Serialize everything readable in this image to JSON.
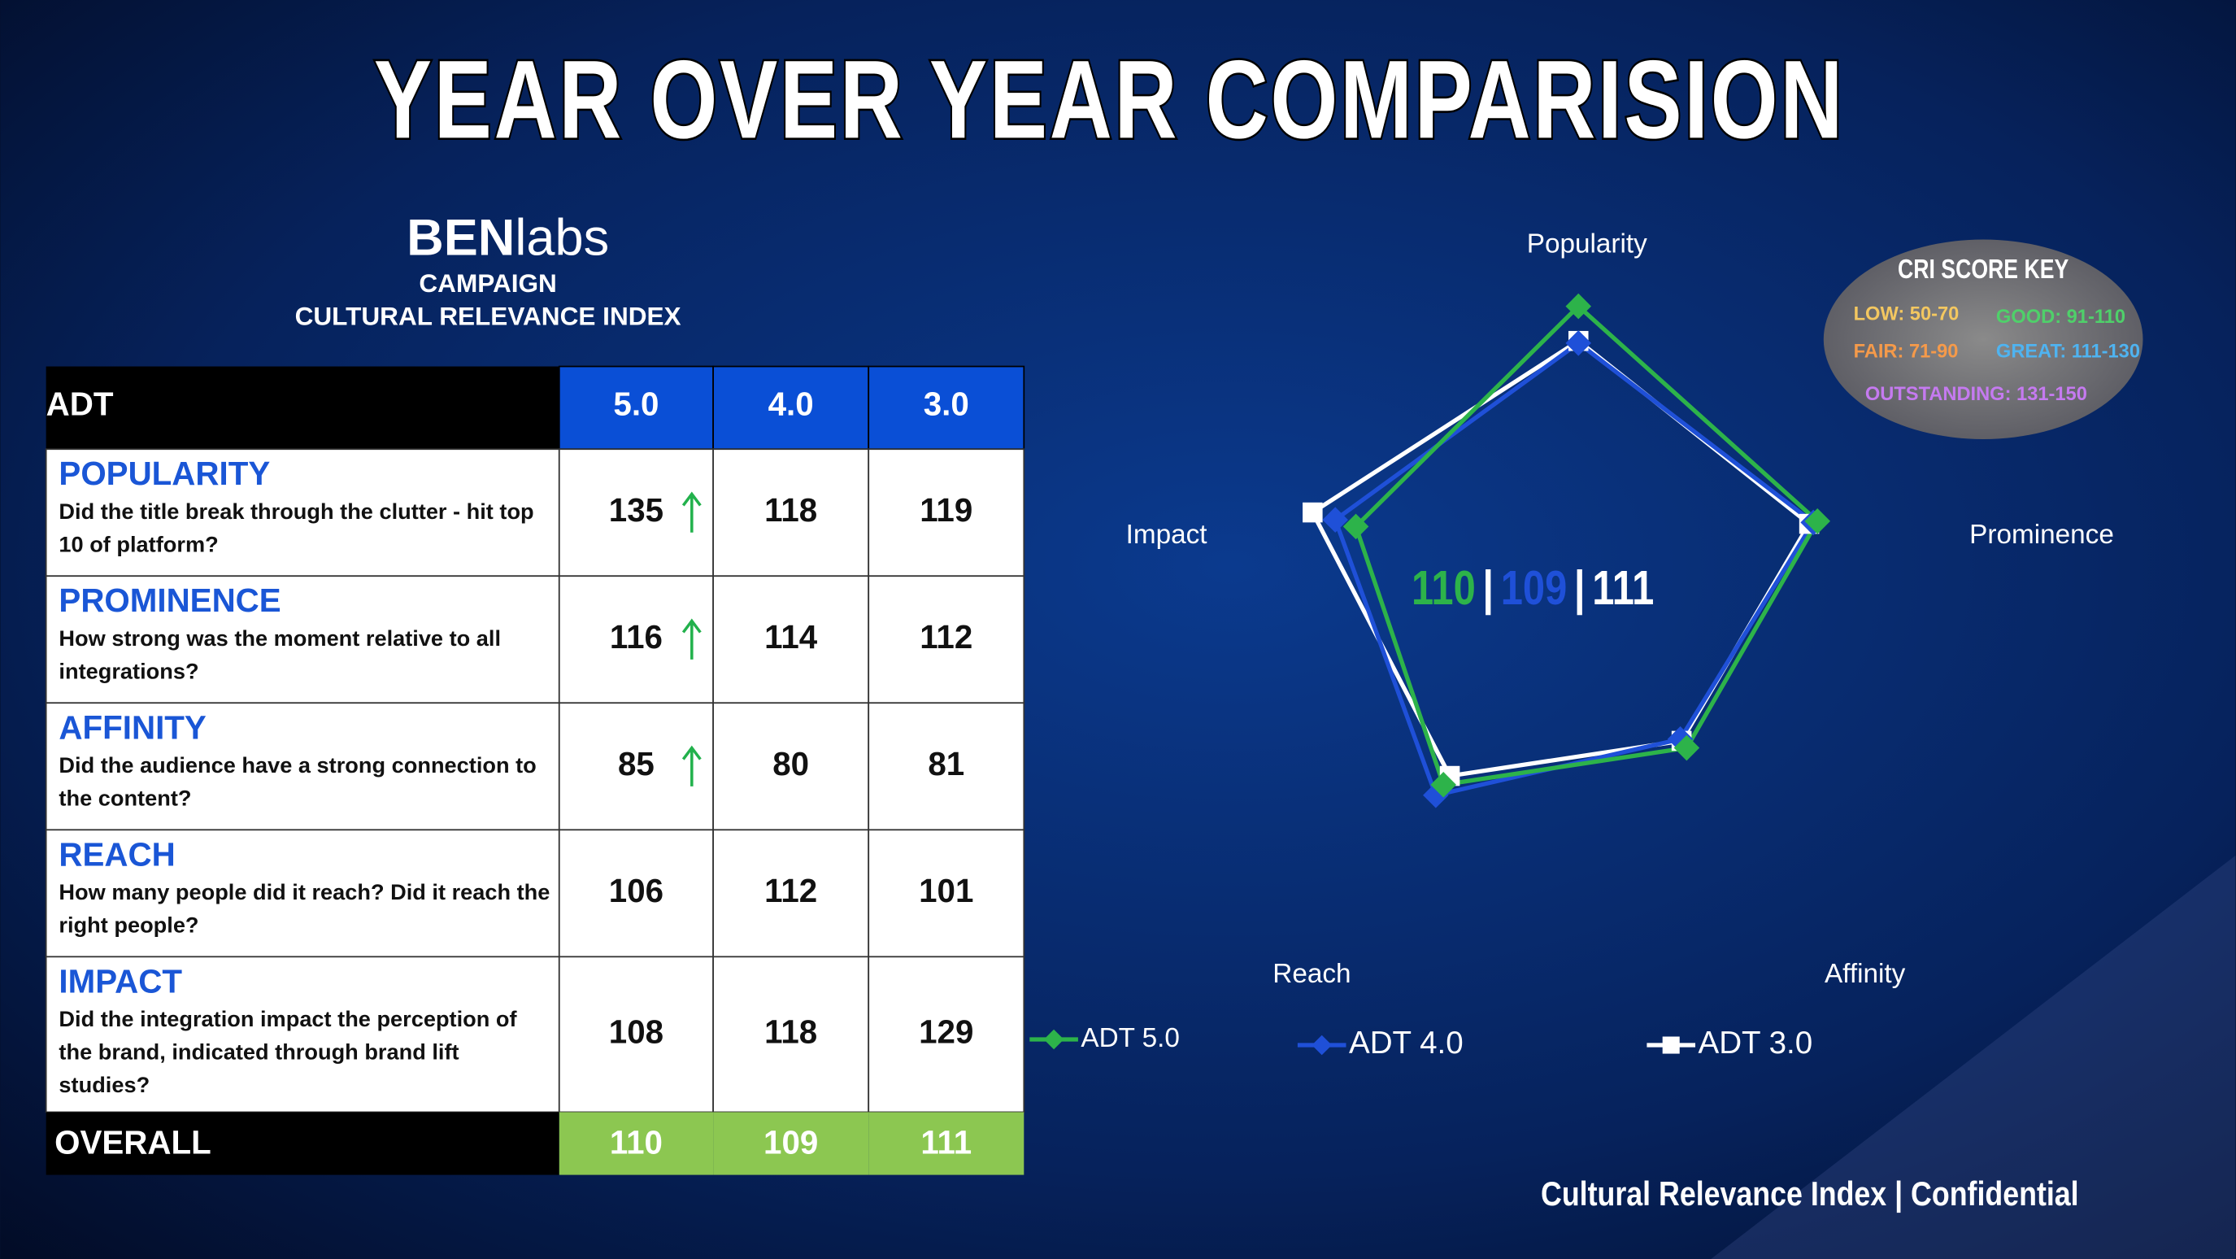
{
  "header": {
    "title": "YEAR OVER YEAR COMPARISION",
    "logo_bold": "BEN",
    "logo_light": "labs",
    "subtitle_lines": [
      "CAMPAIGN",
      "CULTURAL RELEVANCE INDEX"
    ]
  },
  "table": {
    "corner": "ADT",
    "columns": [
      "5.0",
      "4.0",
      "3.0"
    ],
    "rows": [
      {
        "name": "POPULARITY",
        "question": "Did the title break through the clutter - hit top 10 of platform?",
        "values": [
          135,
          118,
          119
        ],
        "improved": true
      },
      {
        "name": "PROMINENCE",
        "question": "How strong was the moment relative to all integrations?",
        "values": [
          116,
          114,
          112
        ],
        "improved": true
      },
      {
        "name": "AFFINITY",
        "question": "Did the audience have a strong connection to the content?",
        "values": [
          85,
          80,
          81
        ],
        "improved": true
      },
      {
        "name": "REACH",
        "question": "How many people did it reach? Did it reach the right people?",
        "values": [
          106,
          112,
          101
        ],
        "improved": false
      },
      {
        "name": "IMPACT",
        "question": "Did the integration impact the perception of the brand, indicated through brand lift studies?",
        "values": [
          108,
          118,
          129
        ],
        "improved": false
      }
    ],
    "overall_label": "OVERALL",
    "overall": [
      110,
      109,
      111
    ]
  },
  "chart_data": {
    "type": "radar",
    "categories": [
      "Popularity",
      "Prominence",
      "Affinity",
      "Reach",
      "Impact"
    ],
    "rlim": [
      0,
      150
    ],
    "series": [
      {
        "name": "ADT 5.0",
        "color": "#2db34a",
        "marker": "diamond",
        "values": [
          135,
          116,
          85,
          106,
          108
        ]
      },
      {
        "name": "ADT 4.0",
        "color": "#1f50d8",
        "marker": "diamond",
        "values": [
          118,
          114,
          80,
          112,
          118
        ]
      },
      {
        "name": "ADT 3.0",
        "color": "#ffffff",
        "marker": "square",
        "values": [
          119,
          112,
          81,
          101,
          129
        ]
      }
    ],
    "center_separator": "|"
  },
  "score_key": {
    "title": "CRI SCORE KEY",
    "items": [
      {
        "label": "LOW: 50-70",
        "color": "#f3c760"
      },
      {
        "label": "GOOD: 91-110",
        "color": "#4fd06a"
      },
      {
        "label": "FAIR: 71-90",
        "color": "#f59a4a"
      },
      {
        "label": "GREAT: 111-130",
        "color": "#4fb3f0"
      },
      {
        "label": "OUTSTANDING: 131-150",
        "color": "#c57af0"
      }
    ]
  },
  "footer": "Cultural Relevance Index | Confidential"
}
